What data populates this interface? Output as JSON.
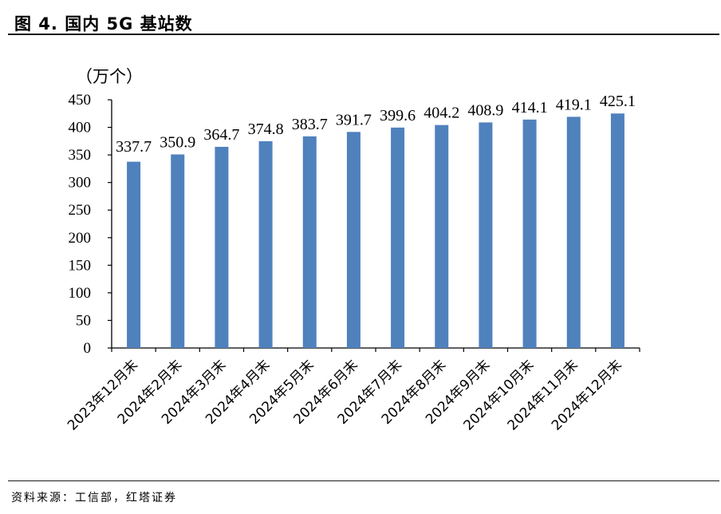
{
  "figure": {
    "title": "图 4. 国内 5G 基站数",
    "source": "资料来源：工信部，红塔证券"
  },
  "chart_data": {
    "type": "bar",
    "unit_label": "（万个）",
    "categories": [
      "2023年12月末",
      "2024年2月末",
      "2024年3月末",
      "2024年4月末",
      "2024年5月末",
      "2024年6月末",
      "2024年7月末",
      "2024年8月末",
      "2024年9月末",
      "2024年10月末",
      "2024年11月末",
      "2024年12月末"
    ],
    "values": [
      337.7,
      350.9,
      364.7,
      374.8,
      383.7,
      391.7,
      399.6,
      404.2,
      408.9,
      414.1,
      419.1,
      425.1
    ],
    "data_labels": [
      "337.7",
      "350.9",
      "364.7",
      "374.8",
      "383.7",
      "391.7",
      "399.6",
      "404.2",
      "408.9",
      "414.1",
      "419.1",
      "425.1"
    ],
    "ylim": [
      0,
      450
    ],
    "yticks": [
      "0",
      "50",
      "100",
      "150",
      "200",
      "250",
      "300",
      "350",
      "400",
      "450"
    ],
    "grid": false,
    "bar_color": "#4f81bd"
  }
}
